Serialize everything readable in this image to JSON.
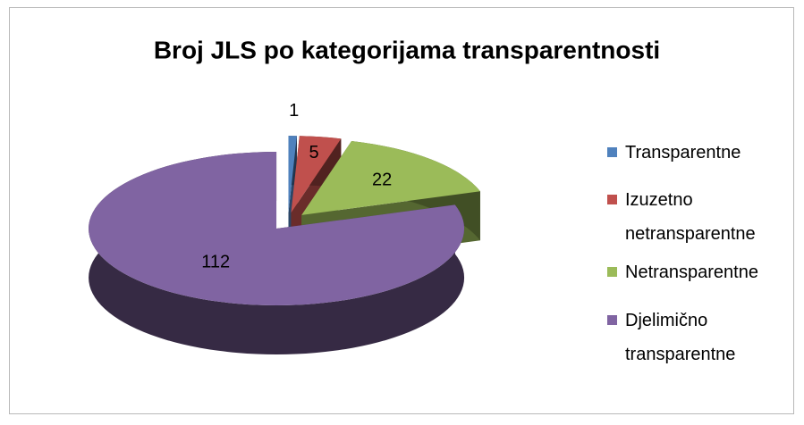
{
  "chart_data": {
    "type": "pie",
    "title": "Broj JLS po kategorijama transparentnosti",
    "categories": [
      "Transparentne",
      "Izuzetno netransparentne",
      "Netransparentne",
      "Djelimično transparentne"
    ],
    "values": [
      1,
      5,
      22,
      112
    ],
    "colors": [
      "#4f81bd",
      "#c0504d",
      "#9bbb59",
      "#8064a2"
    ],
    "legend": "right",
    "style": "3d-exploded"
  }
}
